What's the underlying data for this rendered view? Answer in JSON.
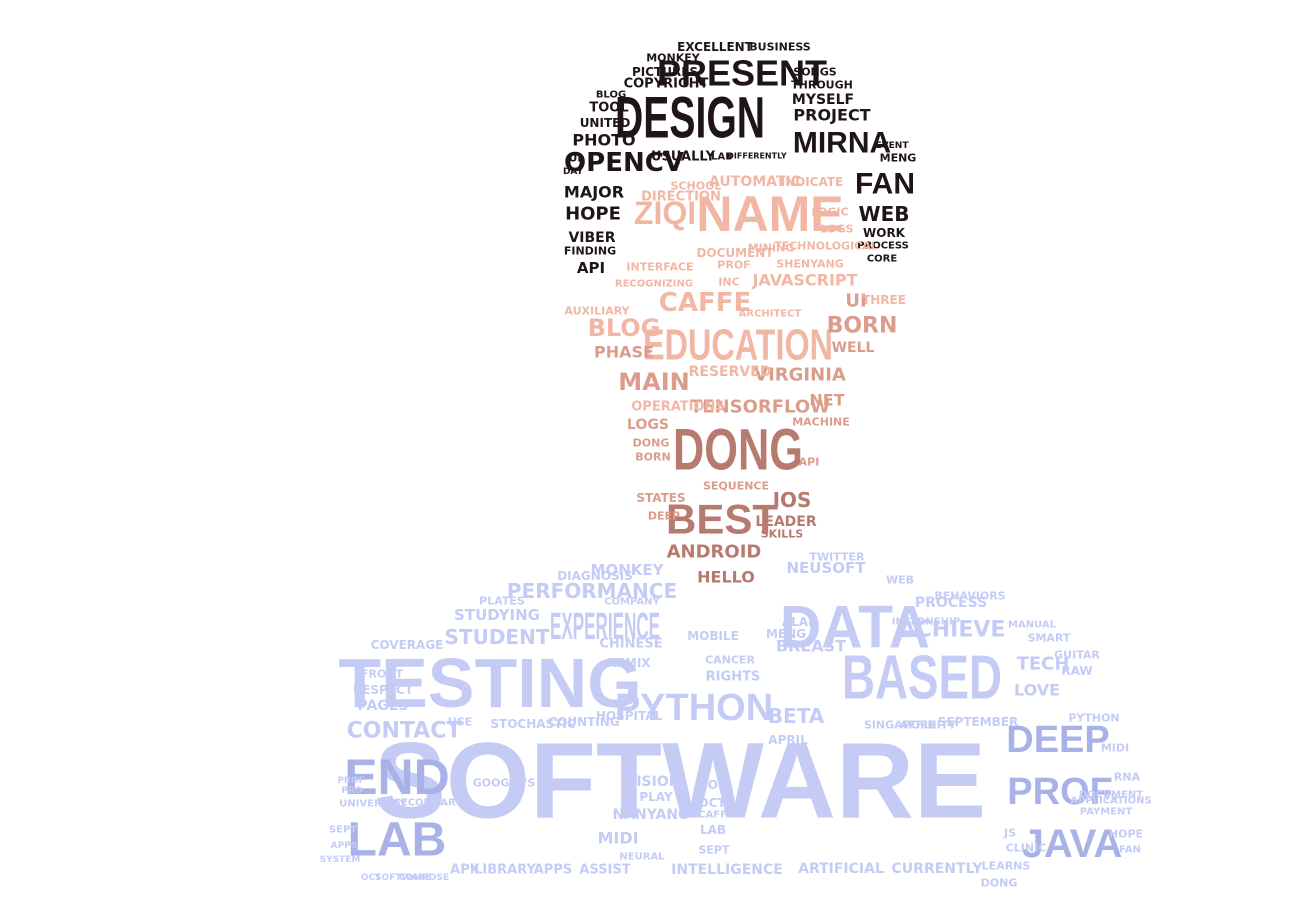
{
  "palette": {
    "hair": "#1f1517",
    "face_light": "#f2b7a4",
    "face_mid": "#dc9c8c",
    "face_dark": "#b67a6e",
    "body": "#c4ccf6",
    "body_dark": "#a9b2e8",
    "background": "#ffffff"
  },
  "words": [
    {
      "text": "DESIGN",
      "g": "hair"
    },
    {
      "text": "PRESENT",
      "g": "hair"
    },
    {
      "text": "MIRNA",
      "g": "hair"
    },
    {
      "text": "OPENCV",
      "g": "hair"
    },
    {
      "text": "FAN",
      "g": "hair"
    },
    {
      "text": "WEB",
      "g": "hair"
    },
    {
      "text": "HOPE",
      "g": "hair"
    },
    {
      "text": "MAJOR",
      "g": "hair"
    },
    {
      "text": "VIBER",
      "g": "hair"
    },
    {
      "text": "PHOTO",
      "g": "hair"
    },
    {
      "text": "PROJECT",
      "g": "hair"
    },
    {
      "text": "MYSELF",
      "g": "hair"
    },
    {
      "text": "COPYRIGHT",
      "g": "hair"
    },
    {
      "text": "PICTURES",
      "g": "hair"
    },
    {
      "text": "EXCELLENT",
      "g": "hair"
    },
    {
      "text": "BUSINESS",
      "g": "hair"
    },
    {
      "text": "MONKEY",
      "g": "hair"
    },
    {
      "text": "SONGS",
      "g": "hair"
    },
    {
      "text": "THROUGH",
      "g": "hair"
    },
    {
      "text": "TOOL",
      "g": "hair"
    },
    {
      "text": "UNITED",
      "g": "hair"
    },
    {
      "text": "BLOG",
      "g": "hair"
    },
    {
      "text": "USUALLY",
      "g": "hair"
    },
    {
      "text": "LAB",
      "g": "hair"
    },
    {
      "text": "DIFFERENTLY",
      "g": "hair"
    },
    {
      "text": "UI",
      "g": "hair"
    },
    {
      "text": "DAY",
      "g": "hair"
    },
    {
      "text": "API",
      "g": "hair"
    },
    {
      "text": "FINDING",
      "g": "hair"
    },
    {
      "text": "WORK",
      "g": "hair"
    },
    {
      "text": "PROCESS",
      "g": "hair"
    },
    {
      "text": "CORE",
      "g": "hair"
    },
    {
      "text": "MENG",
      "g": "hair"
    },
    {
      "text": "EVENT",
      "g": "hair"
    },
    {
      "text": "NAME",
      "g": "face_light"
    },
    {
      "text": "ZIQI",
      "g": "face_light"
    },
    {
      "text": "EDUCATION",
      "g": "face_light"
    },
    {
      "text": "CAFFE",
      "g": "face_light"
    },
    {
      "text": "BLOG",
      "g": "face_light"
    },
    {
      "text": "BORN",
      "g": "face_mid"
    },
    {
      "text": "UI",
      "g": "face_mid"
    },
    {
      "text": "WELL",
      "g": "face_mid"
    },
    {
      "text": "PHASE",
      "g": "face_mid"
    },
    {
      "text": "MAIN",
      "g": "face_mid"
    },
    {
      "text": "VIRGINIA",
      "g": "face_mid"
    },
    {
      "text": "RESERVED",
      "g": "face_light"
    },
    {
      "text": "TENSORFLOW",
      "g": "face_mid"
    },
    {
      "text": "NET",
      "g": "face_mid"
    },
    {
      "text": "OPERATIONS",
      "g": "face_light"
    },
    {
      "text": "AUTOMATIC",
      "g": "face_light"
    },
    {
      "text": "INDICATE",
      "g": "face_light"
    },
    {
      "text": "DIRECTION",
      "g": "face_light"
    },
    {
      "text": "SCHOOL",
      "g": "face_light"
    },
    {
      "text": "LOGIC",
      "g": "face_light"
    },
    {
      "text": "LOGS",
      "g": "face_light"
    },
    {
      "text": "DOCUMENT",
      "g": "face_light"
    },
    {
      "text": "MINING",
      "g": "face_light"
    },
    {
      "text": "TECHNOLOGICAL",
      "g": "face_light"
    },
    {
      "text": "PROF",
      "g": "face_light"
    },
    {
      "text": "INC",
      "g": "face_light"
    },
    {
      "text": "JAVASCRIPT",
      "g": "face_light"
    },
    {
      "text": "SHENYANG",
      "g": "face_light"
    },
    {
      "text": "INTERFACE",
      "g": "face_light"
    },
    {
      "text": "RECOGNIZING",
      "g": "face_light"
    },
    {
      "text": "AUXILIARY",
      "g": "face_light"
    },
    {
      "text": "ARCHITECT",
      "g": "face_light"
    },
    {
      "text": "THREE",
      "g": "face_light"
    },
    {
      "text": "DONG",
      "g": "face_dark"
    },
    {
      "text": "BEST",
      "g": "face_dark"
    },
    {
      "text": "IOS",
      "g": "face_dark"
    },
    {
      "text": "ANDROID",
      "g": "face_dark"
    },
    {
      "text": "HELLO",
      "g": "face_dark"
    },
    {
      "text": "LEADER",
      "g": "face_dark"
    },
    {
      "text": "SKILLS",
      "g": "face_dark"
    },
    {
      "text": "LOGS",
      "g": "face_mid"
    },
    {
      "text": "DONG",
      "g": "face_mid"
    },
    {
      "text": "BORN",
      "g": "face_mid"
    },
    {
      "text": "STATES",
      "g": "face_mid"
    },
    {
      "text": "DEEP",
      "g": "face_mid"
    },
    {
      "text": "MACHINE",
      "g": "face_mid"
    },
    {
      "text": "API",
      "g": "face_mid"
    },
    {
      "text": "SEQUENCE",
      "g": "face_mid"
    },
    {
      "text": "SOFTWARE",
      "g": "body"
    },
    {
      "text": "TESTING",
      "g": "body"
    },
    {
      "text": "BASED",
      "g": "body"
    },
    {
      "text": "DATA",
      "g": "body"
    },
    {
      "text": "EXPERIENCE",
      "g": "body"
    },
    {
      "text": "PYTHON",
      "g": "body"
    },
    {
      "text": "END",
      "g": "body_dark"
    },
    {
      "text": "LAB",
      "g": "body_dark"
    },
    {
      "text": "DEEP",
      "g": "body_dark"
    },
    {
      "text": "PROF",
      "g": "body_dark"
    },
    {
      "text": "JAVA",
      "g": "body_dark"
    },
    {
      "text": "PERFORMANCE",
      "g": "body"
    },
    {
      "text": "STUDENT",
      "g": "body"
    },
    {
      "text": "STUDYING",
      "g": "body"
    },
    {
      "text": "MONKEY",
      "g": "body"
    },
    {
      "text": "NEUSOFT",
      "g": "body"
    },
    {
      "text": "ACHIEVE",
      "g": "body"
    },
    {
      "text": "PROCESS",
      "g": "body"
    },
    {
      "text": "TECH",
      "g": "body"
    },
    {
      "text": "LOVE",
      "g": "body"
    },
    {
      "text": "CONTACT",
      "g": "body"
    },
    {
      "text": "PAGES",
      "g": "body"
    },
    {
      "text": "RESPECT",
      "g": "body"
    },
    {
      "text": "BETA",
      "g": "body"
    },
    {
      "text": "RIGHTS",
      "g": "body"
    },
    {
      "text": "REMIX",
      "g": "body"
    },
    {
      "text": "CHINESE",
      "g": "body"
    },
    {
      "text": "BREAST",
      "g": "body"
    },
    {
      "text": "MENG",
      "g": "body"
    },
    {
      "text": "ALAN",
      "g": "body"
    },
    {
      "text": "MOBILE",
      "g": "body"
    },
    {
      "text": "TWITTER",
      "g": "body"
    },
    {
      "text": "APRIL",
      "g": "body"
    },
    {
      "text": "SEPTEMBER",
      "g": "body"
    },
    {
      "text": "SINGAPORE",
      "g": "body"
    },
    {
      "text": "AFFINITY",
      "g": "body"
    },
    {
      "text": "VISION",
      "g": "body"
    },
    {
      "text": "PLAY",
      "g": "body"
    },
    {
      "text": "NANYANG",
      "g": "body"
    },
    {
      "text": "MIDI",
      "g": "body"
    },
    {
      "text": "OCT",
      "g": "body"
    },
    {
      "text": "LAB",
      "g": "body"
    },
    {
      "text": "SEPT",
      "g": "body"
    },
    {
      "text": "IOS",
      "g": "body"
    },
    {
      "text": "CAFFE",
      "g": "body"
    },
    {
      "text": "STOCHASTIC",
      "g": "body"
    },
    {
      "text": "COUNTING",
      "g": "body"
    },
    {
      "text": "HOSPITAL",
      "g": "body"
    },
    {
      "text": "USE",
      "g": "body"
    },
    {
      "text": "APK",
      "g": "body"
    },
    {
      "text": "LIBRARY",
      "g": "body"
    },
    {
      "text": "APPS",
      "g": "body"
    },
    {
      "text": "ASSIST",
      "g": "body"
    },
    {
      "text": "INTELLIGENCE",
      "g": "body"
    },
    {
      "text": "ARTIFICIAL",
      "g": "body"
    },
    {
      "text": "CURRENTLY",
      "g": "body"
    },
    {
      "text": "UNIVERSITY",
      "g": "body"
    },
    {
      "text": "SECONDARY",
      "g": "body"
    },
    {
      "text": "PAYMENT",
      "g": "body"
    },
    {
      "text": "YU",
      "g": "body"
    },
    {
      "text": "RNA",
      "g": "body"
    },
    {
      "text": "HOPE",
      "g": "body"
    },
    {
      "text": "MIDI",
      "g": "body"
    },
    {
      "text": "FAN",
      "g": "body"
    },
    {
      "text": "PROF",
      "g": "body"
    },
    {
      "text": "PRO",
      "g": "body"
    },
    {
      "text": "SEPT",
      "g": "body"
    },
    {
      "text": "APPS",
      "g": "body"
    },
    {
      "text": "SYSTEM",
      "g": "body"
    },
    {
      "text": "OCT",
      "g": "body"
    },
    {
      "text": "SOFTWARE",
      "g": "body"
    },
    {
      "text": "COMPOSE",
      "g": "body"
    },
    {
      "text": "GOOGLE'S",
      "g": "body"
    },
    {
      "text": "FRONT",
      "g": "body"
    },
    {
      "text": "COVERAGE",
      "g": "body"
    },
    {
      "text": "PLATES",
      "g": "body"
    },
    {
      "text": "COMPANY",
      "g": "body"
    },
    {
      "text": "CANCER",
      "g": "body"
    },
    {
      "text": "CLINIC",
      "g": "body"
    },
    {
      "text": "LEARNS",
      "g": "body"
    },
    {
      "text": "DONG",
      "g": "body"
    },
    {
      "text": "JS",
      "g": "body"
    },
    {
      "text": "RAW",
      "g": "body"
    },
    {
      "text": "GUITAR",
      "g": "body"
    },
    {
      "text": "DOCUMENT",
      "g": "body"
    },
    {
      "text": "APPLICATIONS",
      "g": "body"
    },
    {
      "text": "NEURAL",
      "g": "body"
    },
    {
      "text": "DIAGNOSIS",
      "g": "body"
    },
    {
      "text": "BEHAVIORS",
      "g": "body"
    },
    {
      "text": "WEB",
      "g": "body"
    },
    {
      "text": "INTERNSHIP",
      "g": "body"
    },
    {
      "text": "PYTHON",
      "g": "body"
    },
    {
      "text": "MANUAL",
      "g": "body"
    },
    {
      "text": "SMART",
      "g": "body"
    }
  ]
}
